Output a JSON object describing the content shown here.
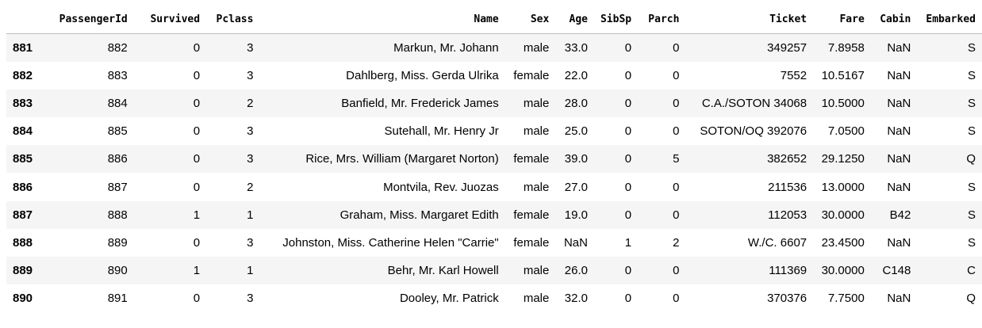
{
  "table": {
    "columns": [
      "",
      "PassengerId",
      "Survived",
      "Pclass",
      "Name",
      "Sex",
      "Age",
      "SibSp",
      "Parch",
      "Ticket",
      "Fare",
      "Cabin",
      "Embarked"
    ],
    "rows": [
      [
        "881",
        "882",
        "0",
        "3",
        "Markun, Mr. Johann",
        "male",
        "33.0",
        "0",
        "0",
        "349257",
        "7.8958",
        "NaN",
        "S"
      ],
      [
        "882",
        "883",
        "0",
        "3",
        "Dahlberg, Miss. Gerda Ulrika",
        "female",
        "22.0",
        "0",
        "0",
        "7552",
        "10.5167",
        "NaN",
        "S"
      ],
      [
        "883",
        "884",
        "0",
        "2",
        "Banfield, Mr. Frederick James",
        "male",
        "28.0",
        "0",
        "0",
        "C.A./SOTON 34068",
        "10.5000",
        "NaN",
        "S"
      ],
      [
        "884",
        "885",
        "0",
        "3",
        "Sutehall, Mr. Henry Jr",
        "male",
        "25.0",
        "0",
        "0",
        "SOTON/OQ 392076",
        "7.0500",
        "NaN",
        "S"
      ],
      [
        "885",
        "886",
        "0",
        "3",
        "Rice, Mrs. William (Margaret Norton)",
        "female",
        "39.0",
        "0",
        "5",
        "382652",
        "29.1250",
        "NaN",
        "Q"
      ],
      [
        "886",
        "887",
        "0",
        "2",
        "Montvila, Rev. Juozas",
        "male",
        "27.0",
        "0",
        "0",
        "211536",
        "13.0000",
        "NaN",
        "S"
      ],
      [
        "887",
        "888",
        "1",
        "1",
        "Graham, Miss. Margaret Edith",
        "female",
        "19.0",
        "0",
        "0",
        "112053",
        "30.0000",
        "B42",
        "S"
      ],
      [
        "888",
        "889",
        "0",
        "3",
        "Johnston, Miss. Catherine Helen \"Carrie\"",
        "female",
        "NaN",
        "1",
        "2",
        "W./C. 6607",
        "23.4500",
        "NaN",
        "S"
      ],
      [
        "889",
        "890",
        "1",
        "1",
        "Behr, Mr. Karl Howell",
        "male",
        "26.0",
        "0",
        "0",
        "111369",
        "30.0000",
        "C148",
        "C"
      ],
      [
        "890",
        "891",
        "0",
        "3",
        "Dooley, Mr. Patrick",
        "male",
        "32.0",
        "0",
        "0",
        "370376",
        "7.7500",
        "NaN",
        "Q"
      ]
    ]
  },
  "colors": {
    "stripe": "#f5f5f5",
    "header_border": "#bdbdbd",
    "text": "#000000"
  }
}
